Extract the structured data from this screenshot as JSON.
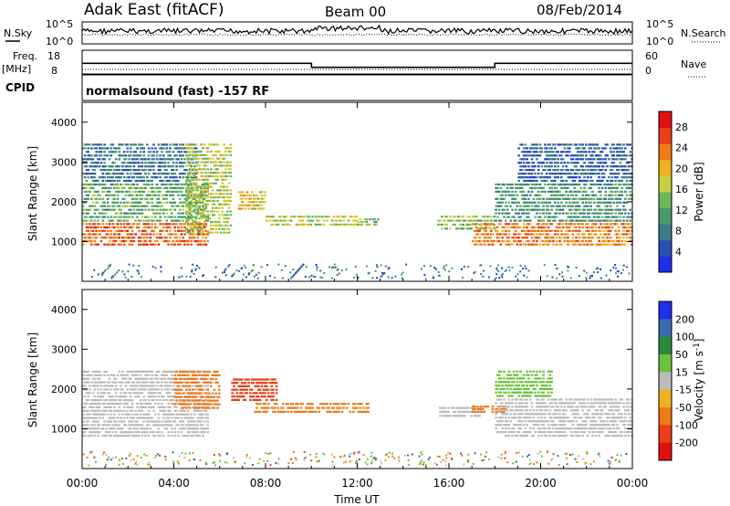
{
  "header": {
    "station": "Adak East (fitACF)",
    "beam": "Beam 00",
    "date": "08/Feb/2014"
  },
  "top_panels": {
    "nsky_label": "N.Sky",
    "nsky_ticks": [
      "10^5",
      "10^0"
    ],
    "nsearch_label": "N.Search",
    "nsearch_ticks": [
      "10^5",
      "10^0"
    ],
    "freq_label": "Freq.",
    "freq_unit": "[MHz]",
    "freq_ticks": [
      "18",
      "8"
    ],
    "nave_label": "Nave",
    "nave_ticks": [
      "60",
      "0"
    ],
    "cpid_label": "CPID",
    "cpid_text": "normalsound (fast) -157 RF"
  },
  "colors": {
    "power_scale": [
      "#1f2ee8",
      "#2a4fb8",
      "#3d7a8c",
      "#4a9a6a",
      "#6ab85a",
      "#c8d040",
      "#f0b020",
      "#f07a18",
      "#e84018",
      "#e01010"
    ],
    "velocity_scale": [
      "#1f2ee8",
      "#3a6ab0",
      "#2e8a3a",
      "#6cc23c",
      "#bcbcbc",
      "#f0b020",
      "#f07a18",
      "#e84018",
      "#e01010"
    ],
    "ground_scatter": "#bcbcbc"
  },
  "chart_data": [
    {
      "type": "line",
      "panel": "sky-noise",
      "xlim": [
        "00:00",
        "24:00"
      ],
      "ylim": [
        1,
        100000
      ],
      "log_y": true,
      "note_series": "N.Sky noise roughly constant near 10^3.5; N.Search dotted near 10^2"
    },
    {
      "type": "line",
      "panel": "frequency-nave",
      "x": [
        "00:00",
        "10:00",
        "10:00",
        "18:00",
        "18:00",
        "24:00"
      ],
      "freq_mhz": [
        12.5,
        12.5,
        10.8,
        10.8,
        12.5,
        12.5
      ],
      "nave": [
        0,
        0,
        0,
        0,
        0,
        0
      ],
      "ylim_freq": [
        8,
        18
      ],
      "ylim_nave": [
        0,
        60
      ]
    },
    {
      "type": "heatmap",
      "panel": "power",
      "xlabel": "",
      "ylabel": "Slant Range [km]",
      "xlim": [
        "00:00",
        "24:00"
      ],
      "ylim": [
        0,
        4500
      ],
      "yticks": [
        1000,
        2000,
        3000,
        4000
      ],
      "colorbar_label": "Power [dB]",
      "colorbar_ticks": [
        4,
        8,
        12,
        16,
        20,
        24,
        28
      ],
      "regions": [
        {
          "t_start": 0.0,
          "t_end": 5.5,
          "r_low": 900,
          "r_high": 1500,
          "value": 26
        },
        {
          "t_start": 0.0,
          "t_end": 5.5,
          "r_low": 1500,
          "r_high": 2500,
          "value": 14
        },
        {
          "t_start": 0.0,
          "t_end": 5.0,
          "r_low": 2500,
          "r_high": 3500,
          "value": 9
        },
        {
          "t_start": 4.5,
          "t_end": 6.5,
          "r_low": 1200,
          "r_high": 3500,
          "value": 18
        },
        {
          "t_start": 6.8,
          "t_end": 8.0,
          "r_low": 1800,
          "r_high": 2300,
          "value": 20
        },
        {
          "t_start": 8.0,
          "t_end": 12.0,
          "r_low": 1400,
          "r_high": 1700,
          "value": 18
        },
        {
          "t_start": 12.0,
          "t_end": 13.0,
          "r_low": 1400,
          "r_high": 1600,
          "value": 16
        },
        {
          "t_start": 15.5,
          "t_end": 18.0,
          "r_low": 1300,
          "r_high": 1700,
          "value": 16
        },
        {
          "t_start": 17.0,
          "t_end": 24.0,
          "r_low": 900,
          "r_high": 1500,
          "value": 24
        },
        {
          "t_start": 18.0,
          "t_end": 24.0,
          "r_low": 1500,
          "r_high": 2500,
          "value": 12
        },
        {
          "t_start": 19.0,
          "t_end": 24.0,
          "r_low": 2500,
          "r_high": 3500,
          "value": 8
        }
      ]
    },
    {
      "type": "heatmap",
      "panel": "velocity",
      "xlabel": "Time UT",
      "ylabel": "Slant Range [km]",
      "xlim": [
        "00:00",
        "24:00"
      ],
      "xticks": [
        "00:00",
        "04:00",
        "08:00",
        "12:00",
        "16:00",
        "20:00",
        "00:00"
      ],
      "ylim": [
        0,
        4500
      ],
      "yticks": [
        1000,
        2000,
        3000,
        4000
      ],
      "colorbar_label": "Velocity [m s^-1]",
      "colorbar_ticks": [
        "200",
        "100",
        "50",
        "15",
        "-15",
        "-50",
        "-100",
        "-200"
      ],
      "regions": [
        {
          "t_start": 0.0,
          "t_end": 5.5,
          "r_low": 800,
          "r_high": 2500,
          "value": 0
        },
        {
          "t_start": 4.0,
          "t_end": 6.0,
          "r_low": 1500,
          "r_high": 2500,
          "value": -60
        },
        {
          "t_start": 6.5,
          "t_end": 8.5,
          "r_low": 1700,
          "r_high": 2300,
          "value": -120
        },
        {
          "t_start": 7.5,
          "t_end": 12.5,
          "r_low": 1400,
          "r_high": 1700,
          "value": -60
        },
        {
          "t_start": 15.5,
          "t_end": 17.5,
          "r_low": 1300,
          "r_high": 1600,
          "value": 0
        },
        {
          "t_start": 17.0,
          "t_end": 18.5,
          "r_low": 1400,
          "r_high": 1600,
          "value": -60
        },
        {
          "t_start": 18.0,
          "t_end": 24.0,
          "r_low": 800,
          "r_high": 1800,
          "value": 0
        },
        {
          "t_start": 18.0,
          "t_end": 20.5,
          "r_low": 1800,
          "r_high": 2500,
          "value": 40
        }
      ]
    }
  ]
}
